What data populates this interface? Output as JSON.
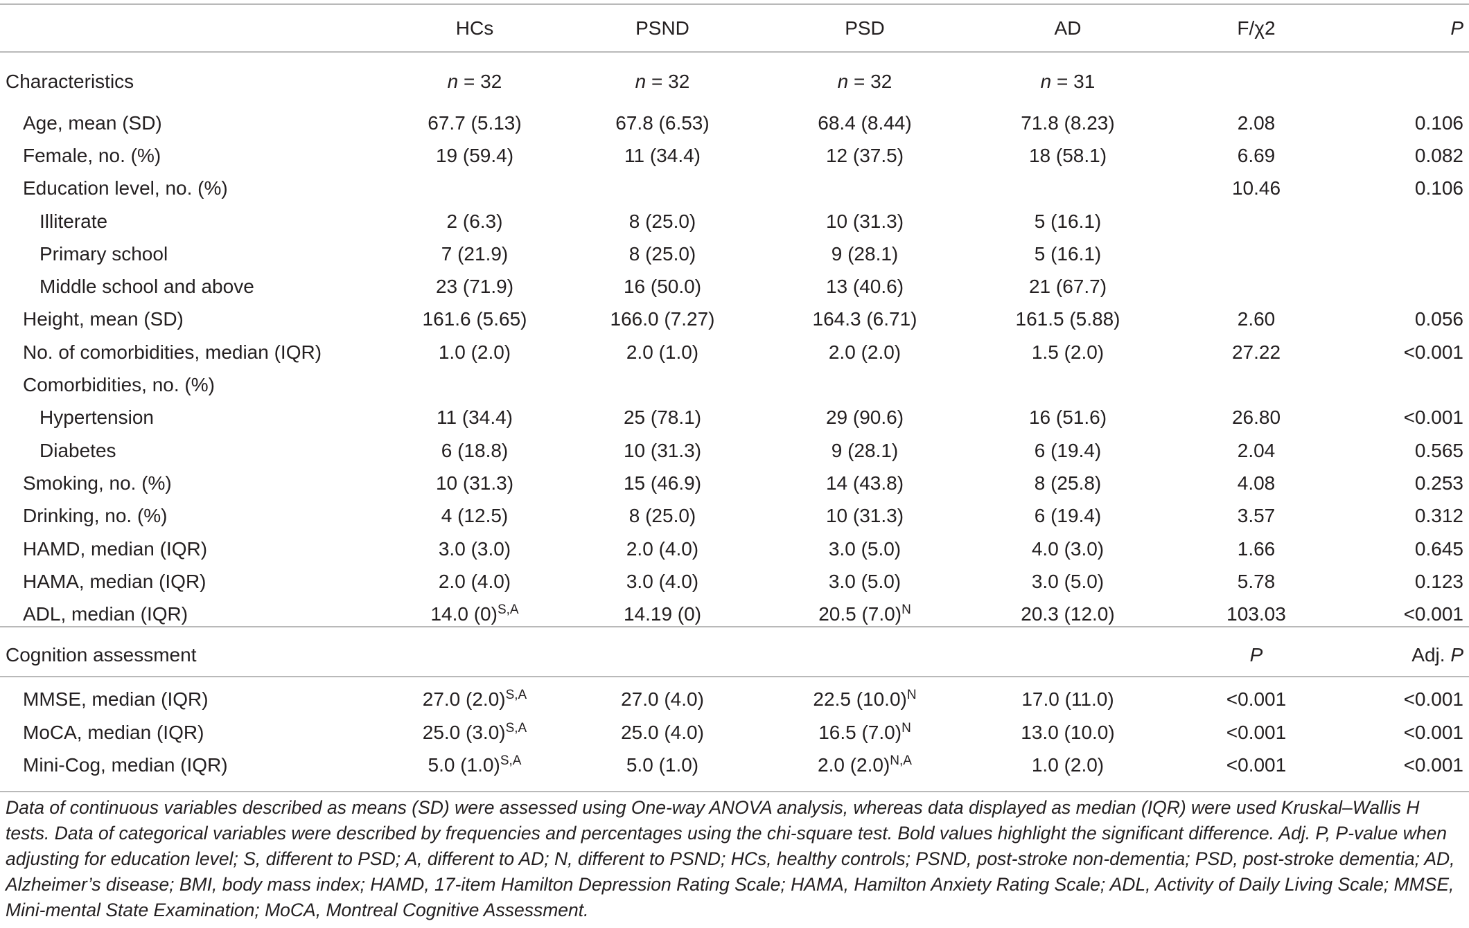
{
  "header": {
    "hcs": "HCs",
    "psnd": "PSND",
    "psd": "PSD",
    "ad": "AD",
    "f_chi2": "F/χ2",
    "p": "P"
  },
  "characteristics_section": {
    "title": "Characteristics",
    "n_prefix": "n",
    "n_hcs": " = 32",
    "n_psnd": " = 32",
    "n_psd": " = 32",
    "n_ad": " = 31"
  },
  "rows": [
    {
      "label": "Age, mean (SD)",
      "hcs": "67.7 (5.13)",
      "psnd": "67.8 (6.53)",
      "psd": "68.4 (8.44)",
      "ad": "71.8 (8.23)",
      "f": "2.08",
      "p": "0.106"
    },
    {
      "label": "Female, no. (%)",
      "hcs": "19 (59.4)",
      "psnd": "11 (34.4)",
      "psd": "12 (37.5)",
      "ad": "18 (58.1)",
      "f": "6.69",
      "p": "0.082"
    },
    {
      "label": "Education level, no. (%)",
      "hcs": "",
      "psnd": "",
      "psd": "",
      "ad": "",
      "f": "10.46",
      "p": "0.106"
    },
    {
      "label": "Illiterate",
      "hcs": "2 (6.3)",
      "psnd": "8 (25.0)",
      "psd": "10 (31.3)",
      "ad": "5 (16.1)",
      "f": "",
      "p": ""
    },
    {
      "label": "Primary school",
      "hcs": "7 (21.9)",
      "psnd": "8 (25.0)",
      "psd": "9 (28.1)",
      "ad": "5 (16.1)",
      "f": "",
      "p": ""
    },
    {
      "label": "Middle school and above",
      "hcs": "23 (71.9)",
      "psnd": "16 (50.0)",
      "psd": "13 (40.6)",
      "ad": "21 (67.7)",
      "f": "",
      "p": ""
    },
    {
      "label": "Height, mean (SD)",
      "hcs": "161.6 (5.65)",
      "psnd": "166.0 (7.27)",
      "psd": "164.3 (6.71)",
      "ad": "161.5 (5.88)",
      "f": "2.60",
      "p": "0.056"
    },
    {
      "label": "No. of comorbidities, median (IQR)",
      "hcs": "1.0 (2.0)",
      "psnd": "2.0 (1.0)",
      "psd": "2.0 (2.0)",
      "ad": "1.5 (2.0)",
      "f": "27.22",
      "p": "<0.001"
    },
    {
      "label": "Comorbidities, no. (%)",
      "hcs": "",
      "psnd": "",
      "psd": "",
      "ad": "",
      "f": "",
      "p": ""
    },
    {
      "label": "Hypertension",
      "hcs": "11 (34.4)",
      "psnd": "25 (78.1)",
      "psd": "29 (90.6)",
      "ad": "16 (51.6)",
      "f": "26.80",
      "p": "<0.001"
    },
    {
      "label": "Diabetes",
      "hcs": "6 (18.8)",
      "psnd": "10 (31.3)",
      "psd": "9 (28.1)",
      "ad": "6 (19.4)",
      "f": "2.04",
      "p": "0.565"
    },
    {
      "label": "Smoking, no. (%)",
      "hcs": "10 (31.3)",
      "psnd": "15 (46.9)",
      "psd": "14 (43.8)",
      "ad": "8 (25.8)",
      "f": "4.08",
      "p": "0.253"
    },
    {
      "label": "Drinking, no. (%)",
      "hcs": "4 (12.5)",
      "psnd": "8 (25.0)",
      "psd": "10 (31.3)",
      "ad": "6 (19.4)",
      "f": "3.57",
      "p": "0.312"
    },
    {
      "label": "HAMD, median (IQR)",
      "hcs": "3.0 (3.0)",
      "psnd": "2.0 (4.0)",
      "psd": "3.0 (5.0)",
      "ad": "4.0 (3.0)",
      "f": "1.66",
      "p": "0.645"
    },
    {
      "label": "HAMA, median (IQR)",
      "hcs": "2.0 (4.0)",
      "psnd": "3.0 (4.0)",
      "psd": "3.0 (5.0)",
      "ad": "3.0 (5.0)",
      "f": "5.78",
      "p": "0.123"
    },
    {
      "label": "ADL, median (IQR)",
      "hcs": "14.0 (0)",
      "hcs_sup": "S,A",
      "psnd": "14.19 (0)",
      "psd": "20.5 (7.0)",
      "psd_sup": "N",
      "ad": "20.3 (12.0)",
      "f": "103.03",
      "p": "<0.001"
    }
  ],
  "cognition_section": {
    "title": "Cognition assessment",
    "p_header": "P",
    "adj_prefix": "Adj. ",
    "adj_p": "P"
  },
  "cognition_rows": [
    {
      "label": "MMSE, median (IQR)",
      "hcs": "27.0 (2.0)",
      "hcs_sup": "S,A",
      "psnd": "27.0 (4.0)",
      "psd": "22.5 (10.0)",
      "psd_sup": "N",
      "ad": "17.0 (11.0)",
      "p": "<0.001",
      "adj_p": "<0.001"
    },
    {
      "label": "MoCA, median (IQR)",
      "hcs": "25.0 (3.0)",
      "hcs_sup": "S,A",
      "psnd": "25.0 (4.0)",
      "psd": "16.5 (7.0)",
      "psd_sup": "N",
      "ad": "13.0 (10.0)",
      "p": "<0.001",
      "adj_p": "<0.001"
    },
    {
      "label": "Mini-Cog, median (IQR)",
      "hcs": "5.0 (1.0)",
      "hcs_sup": "S,A",
      "psnd": "5.0 (1.0)",
      "psd": "2.0 (2.0)",
      "psd_sup": "N,A",
      "ad": "1.0 (2.0)",
      "p": "<0.001",
      "adj_p": "<0.001"
    }
  ],
  "footnote": "Data of continuous variables described as means (SD) were assessed using One-way ANOVA analysis, whereas data displayed as median (IQR) were used Kruskal–Wallis H tests. Data of categorical variables were described by frequencies and percentages using the chi-square test. Bold values highlight the significant difference. Adj. P, P-value when adjusting for education level; S, different to PSD; A, different to AD; N, different to PSND; HCs, healthy controls; PSND, post-stroke non-dementia; PSD, post-stroke dementia; AD, Alzheimer’s disease; BMI, body mass index; HAMD, 17-item Hamilton Depression Rating Scale; HAMA, Hamilton Anxiety Rating Scale; ADL, Activity of Daily Living Scale; MMSE, Mini-mental State Examination; MoCA, Montreal Cognitive Assessment."
}
